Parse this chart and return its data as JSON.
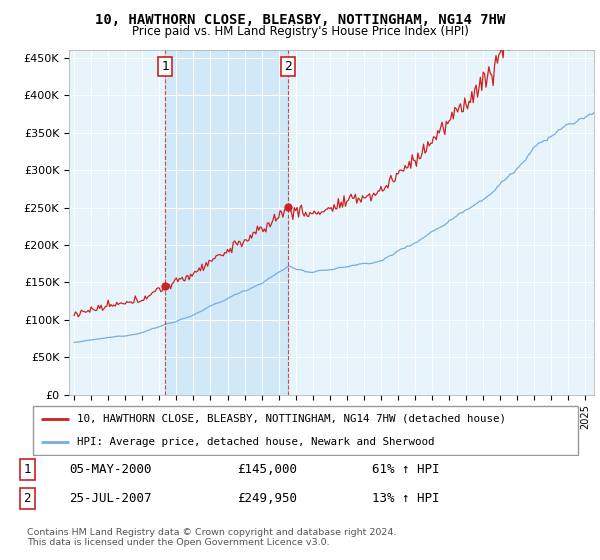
{
  "title": "10, HAWTHORN CLOSE, BLEASBY, NOTTINGHAM, NG14 7HW",
  "subtitle": "Price paid vs. HM Land Registry's House Price Index (HPI)",
  "ylim": [
    0,
    460000
  ],
  "yticks": [
    0,
    50000,
    100000,
    150000,
    200000,
    250000,
    300000,
    350000,
    400000,
    450000
  ],
  "ytick_labels": [
    "£0",
    "£50K",
    "£100K",
    "£150K",
    "£200K",
    "£250K",
    "£300K",
    "£350K",
    "£400K",
    "£450K"
  ],
  "xlim_start": 1994.7,
  "xlim_end": 2025.5,
  "sale1_date": 2000.35,
  "sale1_price": 145000,
  "sale1_label": "1",
  "sale2_date": 2007.56,
  "sale2_price": 249950,
  "sale2_label": "2",
  "red_line_color": "#cc2222",
  "blue_line_color": "#7aaddb",
  "shade_color": "#d0e8f8",
  "background_color": "#e8f4fb",
  "grid_color": "#ffffff",
  "legend_line1": "10, HAWTHORN CLOSE, BLEASBY, NOTTINGHAM, NG14 7HW (detached house)",
  "legend_line2": "HPI: Average price, detached house, Newark and Sherwood",
  "table_row1_num": "1",
  "table_row1_date": "05-MAY-2000",
  "table_row1_price": "£145,000",
  "table_row1_hpi": "61% ↑ HPI",
  "table_row2_num": "2",
  "table_row2_date": "25-JUL-2007",
  "table_row2_price": "£249,950",
  "table_row2_hpi": "13% ↑ HPI",
  "footer": "Contains HM Land Registry data © Crown copyright and database right 2024.\nThis data is licensed under the Open Government Licence v3.0."
}
